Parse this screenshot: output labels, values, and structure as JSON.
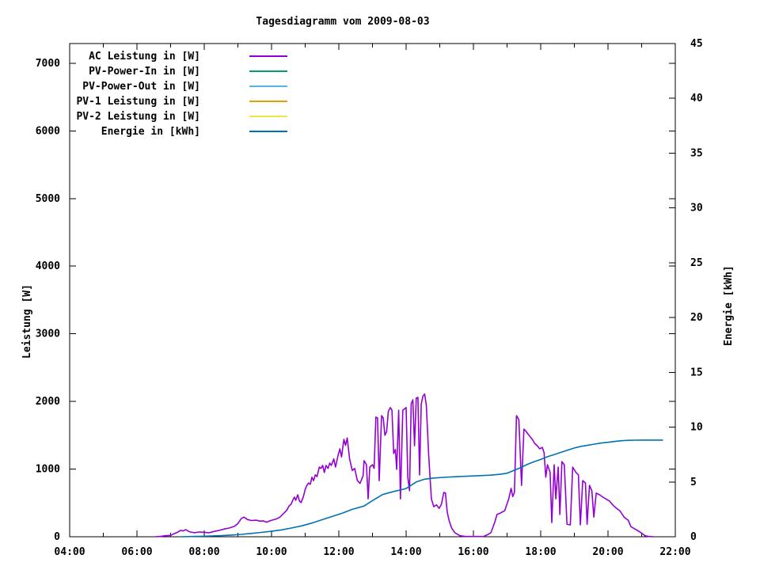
{
  "chart_data": {
    "type": "line",
    "title": "Tagesdiagramm vom 2009-08-03",
    "grid": false,
    "legend_position": "top-left-inside",
    "x_axis": {
      "range": [
        4,
        22
      ],
      "major_ticks": [
        {
          "hour": 4,
          "label": "04:00"
        },
        {
          "hour": 6,
          "label": "06:00"
        },
        {
          "hour": 8,
          "label": "08:00"
        },
        {
          "hour": 10,
          "label": "10:00"
        },
        {
          "hour": 12,
          "label": "12:00"
        },
        {
          "hour": 14,
          "label": "14:00"
        },
        {
          "hour": 16,
          "label": "16:00"
        },
        {
          "hour": 18,
          "label": "18:00"
        },
        {
          "hour": 20,
          "label": "20:00"
        },
        {
          "hour": 22,
          "label": "22:00"
        }
      ],
      "minor_tick_hours": [
        5,
        7,
        9,
        11,
        13,
        15,
        17,
        19,
        21
      ]
    },
    "y_axis": {
      "label": "Leistung [W]",
      "range": [
        0,
        7291
      ],
      "ticks": [
        0,
        1000,
        2000,
        3000,
        4000,
        5000,
        6000,
        7000
      ]
    },
    "y2_axis": {
      "label": "Energie [kWh]",
      "range": [
        0,
        45
      ],
      "ticks": [
        0,
        5,
        10,
        15,
        20,
        25,
        30,
        35,
        40,
        45
      ]
    },
    "series": [
      {
        "name": "AC Leistung in [W]",
        "color": "#9400D3",
        "axis": "y1",
        "points": [
          [
            6.55,
            0
          ],
          [
            6.7,
            5
          ],
          [
            6.85,
            15
          ],
          [
            7.0,
            20
          ],
          [
            7.1,
            45
          ],
          [
            7.2,
            65
          ],
          [
            7.3,
            95
          ],
          [
            7.37,
            85
          ],
          [
            7.45,
            105
          ],
          [
            7.55,
            75
          ],
          [
            7.7,
            60
          ],
          [
            7.85,
            70
          ],
          [
            8.0,
            65
          ],
          [
            8.15,
            60
          ],
          [
            8.3,
            80
          ],
          [
            8.45,
            95
          ],
          [
            8.6,
            115
          ],
          [
            8.75,
            130
          ],
          [
            8.9,
            155
          ],
          [
            9.0,
            195
          ],
          [
            9.1,
            270
          ],
          [
            9.18,
            290
          ],
          [
            9.28,
            255
          ],
          [
            9.4,
            240
          ],
          [
            9.55,
            245
          ],
          [
            9.65,
            230
          ],
          [
            9.75,
            235
          ],
          [
            9.85,
            215
          ],
          [
            9.95,
            235
          ],
          [
            10.05,
            250
          ],
          [
            10.15,
            265
          ],
          [
            10.25,
            290
          ],
          [
            10.35,
            340
          ],
          [
            10.45,
            390
          ],
          [
            10.52,
            455
          ],
          [
            10.58,
            480
          ],
          [
            10.63,
            540
          ],
          [
            10.68,
            585
          ],
          [
            10.72,
            540
          ],
          [
            10.78,
            620
          ],
          [
            10.83,
            525
          ],
          [
            10.88,
            505
          ],
          [
            10.95,
            600
          ],
          [
            11.0,
            700
          ],
          [
            11.05,
            760
          ],
          [
            11.1,
            795
          ],
          [
            11.15,
            775
          ],
          [
            11.2,
            880
          ],
          [
            11.25,
            830
          ],
          [
            11.3,
            915
          ],
          [
            11.35,
            890
          ],
          [
            11.42,
            1030
          ],
          [
            11.47,
            1010
          ],
          [
            11.52,
            1055
          ],
          [
            11.57,
            950
          ],
          [
            11.62,
            1055
          ],
          [
            11.68,
            1010
          ],
          [
            11.73,
            1090
          ],
          [
            11.78,
            1055
          ],
          [
            11.85,
            1150
          ],
          [
            11.9,
            1030
          ],
          [
            11.97,
            1185
          ],
          [
            12.03,
            1300
          ],
          [
            12.08,
            1180
          ],
          [
            12.15,
            1440
          ],
          [
            12.2,
            1350
          ],
          [
            12.25,
            1460
          ],
          [
            12.32,
            1150
          ],
          [
            12.4,
            980
          ],
          [
            12.47,
            1010
          ],
          [
            12.55,
            830
          ],
          [
            12.63,
            790
          ],
          [
            12.72,
            900
          ],
          [
            12.75,
            1125
          ],
          [
            12.82,
            1065
          ],
          [
            12.87,
            560
          ],
          [
            12.92,
            1030
          ],
          [
            13.0,
            1065
          ],
          [
            13.05,
            1010
          ],
          [
            13.1,
            1770
          ],
          [
            13.15,
            1755
          ],
          [
            13.2,
            830
          ],
          [
            13.27,
            1790
          ],
          [
            13.32,
            1755
          ],
          [
            13.37,
            1500
          ],
          [
            13.42,
            1555
          ],
          [
            13.47,
            1850
          ],
          [
            13.53,
            1910
          ],
          [
            13.58,
            1870
          ],
          [
            13.63,
            1230
          ],
          [
            13.68,
            1290
          ],
          [
            13.72,
            995
          ],
          [
            13.78,
            1870
          ],
          [
            13.83,
            560
          ],
          [
            13.9,
            1870
          ],
          [
            14.0,
            1910
          ],
          [
            14.05,
            880
          ],
          [
            14.1,
            680
          ],
          [
            14.15,
            1965
          ],
          [
            14.2,
            2025
          ],
          [
            14.25,
            1345
          ],
          [
            14.3,
            2050
          ],
          [
            14.35,
            2060
          ],
          [
            14.4,
            915
          ],
          [
            14.45,
            1965
          ],
          [
            14.5,
            2080
          ],
          [
            14.55,
            2110
          ],
          [
            14.6,
            1945
          ],
          [
            14.67,
            1205
          ],
          [
            14.75,
            560
          ],
          [
            14.82,
            445
          ],
          [
            14.9,
            470
          ],
          [
            14.98,
            420
          ],
          [
            15.05,
            480
          ],
          [
            15.12,
            655
          ],
          [
            15.17,
            645
          ],
          [
            15.22,
            365
          ],
          [
            15.28,
            235
          ],
          [
            15.35,
            130
          ],
          [
            15.45,
            60
          ],
          [
            15.6,
            15
          ],
          [
            15.75,
            5
          ],
          [
            15.9,
            3
          ],
          [
            16.1,
            3
          ],
          [
            16.3,
            5
          ],
          [
            16.42,
            30
          ],
          [
            16.52,
            60
          ],
          [
            16.63,
            210
          ],
          [
            16.7,
            330
          ],
          [
            16.8,
            350
          ],
          [
            16.93,
            385
          ],
          [
            17.05,
            560
          ],
          [
            17.12,
            715
          ],
          [
            17.17,
            595
          ],
          [
            17.22,
            655
          ],
          [
            17.28,
            1790
          ],
          [
            17.35,
            1730
          ],
          [
            17.43,
            760
          ],
          [
            17.5,
            1590
          ],
          [
            17.57,
            1555
          ],
          [
            17.65,
            1500
          ],
          [
            17.75,
            1440
          ],
          [
            17.82,
            1380
          ],
          [
            17.9,
            1345
          ],
          [
            17.97,
            1300
          ],
          [
            18.05,
            1320
          ],
          [
            18.1,
            1240
          ],
          [
            18.15,
            880
          ],
          [
            18.2,
            1065
          ],
          [
            18.28,
            950
          ],
          [
            18.33,
            210
          ],
          [
            18.4,
            1065
          ],
          [
            18.45,
            560
          ],
          [
            18.52,
            1030
          ],
          [
            18.57,
            330
          ],
          [
            18.63,
            1110
          ],
          [
            18.7,
            1065
          ],
          [
            18.78,
            185
          ],
          [
            18.88,
            175
          ],
          [
            18.95,
            1030
          ],
          [
            19.05,
            950
          ],
          [
            19.12,
            915
          ],
          [
            19.18,
            175
          ],
          [
            19.25,
            830
          ],
          [
            19.33,
            795
          ],
          [
            19.38,
            185
          ],
          [
            19.45,
            760
          ],
          [
            19.52,
            680
          ],
          [
            19.58,
            290
          ],
          [
            19.65,
            645
          ],
          [
            19.75,
            620
          ],
          [
            19.85,
            585
          ],
          [
            19.95,
            555
          ],
          [
            20.05,
            525
          ],
          [
            20.15,
            465
          ],
          [
            20.28,
            410
          ],
          [
            20.35,
            385
          ],
          [
            20.48,
            290
          ],
          [
            20.6,
            245
          ],
          [
            20.68,
            150
          ],
          [
            20.8,
            115
          ],
          [
            20.95,
            70
          ],
          [
            21.1,
            15
          ],
          [
            21.2,
            5
          ],
          [
            21.35,
            0
          ]
        ]
      },
      {
        "name": "PV-Power-In in [W]",
        "color": "#009E73",
        "axis": "y1",
        "points": []
      },
      {
        "name": "PV-Power-Out in [W]",
        "color": "#56B4E9",
        "axis": "y1",
        "points": []
      },
      {
        "name": "PV-1 Leistung in [W]",
        "color": "#E69F00",
        "axis": "y1",
        "points": []
      },
      {
        "name": "PV-2 Leistung in [W]",
        "color": "#F0E442",
        "axis": "y1",
        "points": []
      },
      {
        "name": "Energie in [kWh]",
        "color": "#0072B2",
        "axis": "y2",
        "points": [
          [
            7.3,
            0
          ],
          [
            7.6,
            0.02
          ],
          [
            7.9,
            0.04
          ],
          [
            8.2,
            0.07
          ],
          [
            8.5,
            0.1
          ],
          [
            8.8,
            0.15
          ],
          [
            9.1,
            0.22
          ],
          [
            9.4,
            0.3
          ],
          [
            9.7,
            0.4
          ],
          [
            10.0,
            0.5
          ],
          [
            10.3,
            0.63
          ],
          [
            10.6,
            0.8
          ],
          [
            10.9,
            1.0
          ],
          [
            11.2,
            1.25
          ],
          [
            11.5,
            1.55
          ],
          [
            11.8,
            1.85
          ],
          [
            12.1,
            2.15
          ],
          [
            12.4,
            2.5
          ],
          [
            12.75,
            2.8
          ],
          [
            13.0,
            3.3
          ],
          [
            13.3,
            3.85
          ],
          [
            13.6,
            4.1
          ],
          [
            14.0,
            4.4
          ],
          [
            14.3,
            5.0
          ],
          [
            14.55,
            5.25
          ],
          [
            14.8,
            5.35
          ],
          [
            15.1,
            5.42
          ],
          [
            15.5,
            5.48
          ],
          [
            16.0,
            5.55
          ],
          [
            16.5,
            5.62
          ],
          [
            16.8,
            5.7
          ],
          [
            17.0,
            5.8
          ],
          [
            17.2,
            6.05
          ],
          [
            17.4,
            6.3
          ],
          [
            17.6,
            6.6
          ],
          [
            17.8,
            6.85
          ],
          [
            18.0,
            7.05
          ],
          [
            18.2,
            7.3
          ],
          [
            18.4,
            7.5
          ],
          [
            18.6,
            7.7
          ],
          [
            18.8,
            7.9
          ],
          [
            19.0,
            8.1
          ],
          [
            19.2,
            8.25
          ],
          [
            19.4,
            8.35
          ],
          [
            19.6,
            8.45
          ],
          [
            19.8,
            8.55
          ],
          [
            20.0,
            8.62
          ],
          [
            20.2,
            8.7
          ],
          [
            20.4,
            8.76
          ],
          [
            20.6,
            8.8
          ],
          [
            20.8,
            8.81
          ],
          [
            21.0,
            8.82
          ],
          [
            21.3,
            8.82
          ],
          [
            21.62,
            8.82
          ]
        ]
      }
    ]
  }
}
